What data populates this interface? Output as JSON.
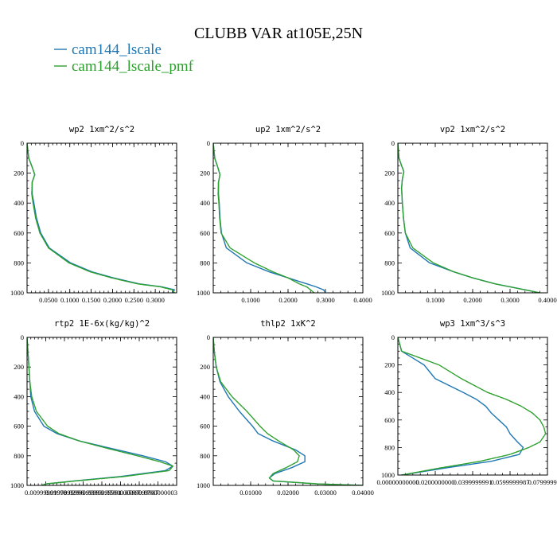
{
  "title": "CLUBB VAR at105E,25N",
  "legend": [
    {
      "label": "cam144_lscale",
      "color": "#1f77b4"
    },
    {
      "label": "cam144_lscale_pmf",
      "color": "#2ca02c"
    }
  ],
  "chart_data": [
    {
      "type": "line",
      "title": "wp2  1xm^2/s^2",
      "ylim": [
        1000,
        0
      ],
      "xlim": [
        0,
        0.35
      ],
      "yticks": [
        "0",
        "200",
        "400",
        "600",
        "800",
        "1000"
      ],
      "yticks_values": [
        0,
        200,
        400,
        600,
        800,
        1000
      ],
      "xticks": [
        "0.0500",
        "0.1000",
        "0.1500",
        "0.2000",
        "0.2500",
        "0.3000"
      ],
      "xticks_values": [
        0.05,
        0.1,
        0.15,
        0.2,
        0.25,
        0.3
      ],
      "series": [
        {
          "name": "cam144_lscale",
          "color": "#1f77b4",
          "y": [
            0,
            100,
            160,
            210,
            260,
            340,
            400,
            500,
            600,
            700,
            800,
            860,
            900,
            940,
            960,
            980,
            1000
          ],
          "x": [
            0.0,
            0.004,
            0.012,
            0.018,
            0.012,
            0.012,
            0.016,
            0.022,
            0.032,
            0.052,
            0.102,
            0.152,
            0.202,
            0.262,
            0.315,
            0.345,
            0.34
          ]
        },
        {
          "name": "cam144_lscale_pmf",
          "color": "#2ca02c",
          "y": [
            0,
            100,
            160,
            210,
            260,
            340,
            400,
            500,
            600,
            700,
            800,
            860,
            900,
            940,
            960,
            980,
            1000
          ],
          "x": [
            0.0,
            0.004,
            0.012,
            0.018,
            0.012,
            0.011,
            0.014,
            0.02,
            0.03,
            0.05,
            0.098,
            0.148,
            0.198,
            0.258,
            0.312,
            0.34,
            0.345
          ]
        }
      ]
    },
    {
      "type": "line",
      "title": "up2  1xm^2/s^2",
      "ylim": [
        1000,
        0
      ],
      "xlim": [
        0,
        0.4
      ],
      "yticks": [
        "0",
        "200",
        "400",
        "600",
        "800",
        "1000"
      ],
      "yticks_values": [
        0,
        200,
        400,
        600,
        800,
        1000
      ],
      "xticks": [
        "0.1000",
        "0.2000",
        "0.3000",
        "0.4000"
      ],
      "xticks_values": [
        0.1,
        0.2,
        0.3,
        0.4
      ],
      "series": [
        {
          "name": "cam144_lscale",
          "color": "#1f77b4",
          "y": [
            0,
            100,
            160,
            210,
            260,
            340,
            400,
            500,
            600,
            700,
            800,
            860,
            900,
            940,
            960,
            980,
            1000
          ],
          "x": [
            0.0,
            0.004,
            0.012,
            0.018,
            0.014,
            0.014,
            0.016,
            0.018,
            0.022,
            0.035,
            0.09,
            0.15,
            0.2,
            0.25,
            0.275,
            0.295,
            0.3
          ]
        },
        {
          "name": "cam144_lscale_pmf",
          "color": "#2ca02c",
          "y": [
            0,
            100,
            160,
            210,
            260,
            340,
            400,
            500,
            600,
            700,
            800,
            860,
            900,
            940,
            960,
            980,
            1000
          ],
          "x": [
            0.0,
            0.004,
            0.012,
            0.018,
            0.014,
            0.013,
            0.015,
            0.017,
            0.021,
            0.045,
            0.11,
            0.16,
            0.2,
            0.23,
            0.25,
            0.26,
            0.27
          ]
        }
      ]
    },
    {
      "type": "line",
      "title": "vp2  1xm^2/s^2",
      "ylim": [
        1000,
        0
      ],
      "xlim": [
        0,
        0.4
      ],
      "yticks": [
        "0",
        "200",
        "400",
        "600",
        "800",
        "1000"
      ],
      "yticks_values": [
        0,
        200,
        400,
        600,
        800,
        1000
      ],
      "xticks": [
        "0.1000",
        "0.2000",
        "0.3000",
        "0.4000"
      ],
      "xticks_values": [
        0.1,
        0.2,
        0.3,
        0.4
      ],
      "series": [
        {
          "name": "cam144_lscale",
          "color": "#1f77b4",
          "y": [
            0,
            100,
            150,
            190,
            240,
            300,
            400,
            500,
            600,
            700,
            800,
            860,
            900,
            940,
            960,
            980,
            1000
          ],
          "x": [
            0.0,
            0.003,
            0.01,
            0.016,
            0.012,
            0.01,
            0.012,
            0.015,
            0.02,
            0.033,
            0.085,
            0.15,
            0.2,
            0.26,
            0.3,
            0.34,
            0.38
          ]
        },
        {
          "name": "cam144_lscale_pmf",
          "color": "#2ca02c",
          "y": [
            0,
            100,
            150,
            190,
            240,
            300,
            400,
            500,
            600,
            700,
            800,
            860,
            900,
            940,
            960,
            980,
            1000
          ],
          "x": [
            0.0,
            0.003,
            0.01,
            0.016,
            0.012,
            0.01,
            0.012,
            0.015,
            0.02,
            0.04,
            0.095,
            0.15,
            0.2,
            0.26,
            0.3,
            0.34,
            0.38
          ]
        }
      ]
    },
    {
      "type": "line",
      "title": "rtp2  1E-6x(kg/kg)^2",
      "ylim": [
        1000,
        0
      ],
      "xlim": [
        0,
        0.08
      ],
      "yticks": [
        "0",
        "200",
        "400",
        "600",
        "800",
        "1000"
      ],
      "yticks_values": [
        0,
        200,
        400,
        600,
        800,
        1000
      ],
      "xticks": [
        "0.00999999978",
        "0.0199999996",
        "0.0299999993",
        "0.0399999991",
        "0.0500000007",
        "0.0599999987",
        "0.0700000003"
      ],
      "xticks_values": [
        0.01,
        0.02,
        0.03,
        0.04,
        0.05,
        0.06,
        0.07
      ],
      "series": [
        {
          "name": "cam144_lscale",
          "color": "#1f77b4",
          "y": [
            0,
            100,
            200,
            300,
            400,
            500,
            600,
            650,
            700,
            750,
            800,
            840,
            870,
            900,
            940,
            970,
            990,
            1000
          ],
          "x": [
            0.0,
            0.0005,
            0.001,
            0.0015,
            0.002,
            0.004,
            0.009,
            0.016,
            0.028,
            0.045,
            0.062,
            0.074,
            0.078,
            0.074,
            0.05,
            0.025,
            0.01,
            0.008
          ]
        },
        {
          "name": "cam144_lscale_pmf",
          "color": "#2ca02c",
          "y": [
            0,
            100,
            200,
            300,
            400,
            500,
            600,
            650,
            700,
            750,
            800,
            840,
            870,
            900,
            940,
            970,
            990,
            1000
          ],
          "x": [
            0.0,
            0.0005,
            0.001,
            0.0015,
            0.0025,
            0.005,
            0.011,
            0.017,
            0.028,
            0.043,
            0.059,
            0.071,
            0.078,
            0.076,
            0.052,
            0.026,
            0.01,
            0.008
          ]
        }
      ]
    },
    {
      "type": "line",
      "title": "thlp2  1xK^2",
      "ylim": [
        1000,
        0
      ],
      "xlim": [
        0,
        0.04
      ],
      "yticks": [
        "0",
        "200",
        "400",
        "600",
        "800",
        "1000"
      ],
      "yticks_values": [
        0,
        200,
        400,
        600,
        800,
        1000
      ],
      "xticks": [
        "0.01000",
        "0.02000",
        "0.03000",
        "0.04000"
      ],
      "xticks_values": [
        0.01,
        0.02,
        0.03,
        0.04
      ],
      "series": [
        {
          "name": "cam144_lscale",
          "color": "#1f77b4",
          "y": [
            0,
            100,
            200,
            300,
            400,
            500,
            600,
            650,
            700,
            760,
            800,
            840,
            880,
            920,
            950,
            970,
            990,
            1000
          ],
          "x": [
            0.0,
            0.0003,
            0.0008,
            0.0018,
            0.004,
            0.007,
            0.0105,
            0.012,
            0.016,
            0.022,
            0.0245,
            0.0245,
            0.021,
            0.0165,
            0.015,
            0.016,
            0.028,
            0.04
          ]
        },
        {
          "name": "cam144_lscale_pmf",
          "color": "#2ca02c",
          "y": [
            0,
            100,
            200,
            300,
            400,
            500,
            600,
            650,
            700,
            760,
            800,
            840,
            880,
            920,
            950,
            970,
            990,
            1000
          ],
          "x": [
            0.0,
            0.0003,
            0.0008,
            0.002,
            0.005,
            0.009,
            0.0125,
            0.0145,
            0.0175,
            0.0215,
            0.023,
            0.0225,
            0.0195,
            0.016,
            0.015,
            0.016,
            0.028,
            0.04
          ]
        }
      ]
    },
    {
      "type": "line",
      "title": "wp3  1xm^3/s^3",
      "ylim": [
        1000,
        0
      ],
      "xlim": [
        0,
        0.08
      ],
      "yticks": [
        "0",
        "200",
        "400",
        "600",
        "800",
        "1000"
      ],
      "yticks_values": [
        0,
        200,
        400,
        600,
        800,
        1000
      ],
      "xticks": [
        "0.00000000000",
        "0.0200000000",
        "0.0399999991",
        "0.0599999987",
        "0.0799999980"
      ],
      "xticks_values": [
        0.0,
        0.02,
        0.04,
        0.06,
        0.08
      ],
      "series": [
        {
          "name": "cam144_lscale",
          "color": "#1f77b4",
          "y": [
            0,
            100,
            150,
            200,
            250,
            300,
            400,
            450,
            500,
            550,
            600,
            650,
            700,
            760,
            800,
            850,
            900,
            950,
            1000
          ],
          "x": [
            0.0,
            0.002,
            0.008,
            0.014,
            0.017,
            0.02,
            0.035,
            0.042,
            0.047,
            0.05,
            0.054,
            0.058,
            0.06,
            0.064,
            0.067,
            0.065,
            0.05,
            0.025,
            0.002
          ]
        },
        {
          "name": "cam144_lscale_pmf",
          "color": "#2ca02c",
          "y": [
            0,
            100,
            150,
            200,
            250,
            300,
            400,
            450,
            500,
            550,
            600,
            650,
            700,
            760,
            800,
            850,
            900,
            950,
            1000
          ],
          "x": [
            0.0,
            0.002,
            0.012,
            0.022,
            0.028,
            0.034,
            0.048,
            0.058,
            0.066,
            0.072,
            0.076,
            0.078,
            0.079,
            0.076,
            0.07,
            0.06,
            0.044,
            0.022,
            0.002
          ]
        }
      ]
    }
  ]
}
